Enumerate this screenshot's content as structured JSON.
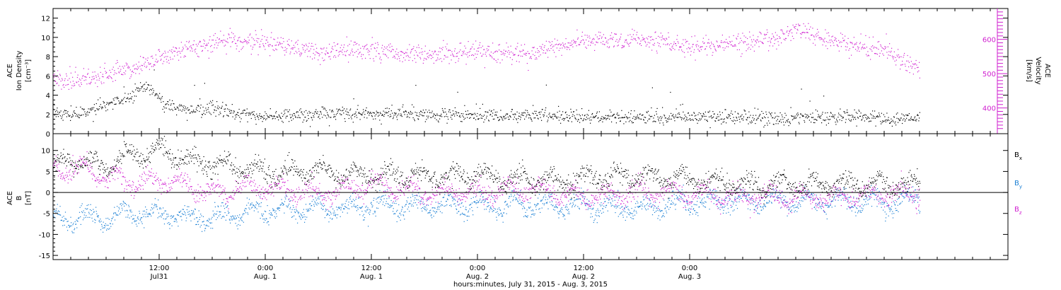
{
  "chart_data": [
    {
      "type": "scatter",
      "panel": "top",
      "ylabel_left": [
        "ACE",
        "Ion Density",
        "[cm⁻³]"
      ],
      "ylabel_right": [
        "ACE",
        "Velocity",
        "[km/s]"
      ],
      "ylim_left": [
        0,
        13
      ],
      "ylim_right": [
        325,
        690
      ],
      "yticks_left": [
        "0",
        "2",
        "4",
        "6",
        "8",
        "10",
        "12"
      ],
      "yticks_right": [
        "400",
        "500",
        "600"
      ],
      "right_axis_color": "#d020d0",
      "series": [
        {
          "axis": "left",
          "color": "#000000",
          "values_hours": [
            0,
            3,
            6,
            9,
            10,
            11,
            12,
            13,
            14,
            16,
            18,
            20,
            22,
            24,
            30,
            36,
            42,
            48,
            54,
            60,
            66,
            72,
            78,
            84,
            90,
            96,
            98
          ],
          "values": [
            2.2,
            2.0,
            3.0,
            4.0,
            5.0,
            4.5,
            3.8,
            3.0,
            2.6,
            2.4,
            2.8,
            2.2,
            1.9,
            1.8,
            2.0,
            2.2,
            2.0,
            2.0,
            1.9,
            1.8,
            1.7,
            1.8,
            1.7,
            1.6,
            1.8,
            1.6,
            1.6
          ]
        },
        {
          "axis": "right",
          "color": "#d020d0",
          "values_hours": [
            0,
            3,
            6,
            9,
            11,
            12,
            14,
            16,
            18,
            20,
            22,
            24,
            30,
            36,
            42,
            48,
            54,
            60,
            66,
            72,
            78,
            82,
            84,
            86,
            90,
            94,
            96,
            98
          ],
          "values": [
            480,
            485,
            495,
            520,
            530,
            550,
            565,
            575,
            590,
            600,
            595,
            590,
            565,
            570,
            555,
            565,
            560,
            595,
            600,
            580,
            590,
            600,
            630,
            610,
            585,
            570,
            535,
            525
          ]
        }
      ]
    },
    {
      "type": "scatter",
      "panel": "bottom",
      "ylabel_left": [
        "ACE",
        "B",
        "[nT]"
      ],
      "ylim": [
        -16,
        14
      ],
      "yticks": [
        "-15",
        "-10",
        "-5",
        "0",
        "5",
        "10"
      ],
      "zero_line": true,
      "series": [
        {
          "name": "Bx",
          "legend_main": "B",
          "legend_sub": "x",
          "color": "#000000",
          "values_hours": [
            0,
            3,
            6,
            9,
            12,
            15,
            18,
            21,
            24,
            30,
            36,
            42,
            48,
            54,
            60,
            66,
            72,
            78,
            84,
            90,
            96,
            98
          ],
          "values": [
            6,
            8,
            6,
            9,
            10,
            8,
            7,
            6,
            5,
            5,
            4,
            4,
            4,
            3,
            3,
            4,
            3,
            2,
            2,
            2,
            2,
            2
          ]
        },
        {
          "name": "By",
          "legend_main": "B",
          "legend_sub": "y",
          "color": "#1a7fd4",
          "values_hours": [
            0,
            3,
            6,
            9,
            12,
            15,
            18,
            21,
            24,
            30,
            36,
            42,
            48,
            54,
            60,
            66,
            72,
            78,
            84,
            90,
            96,
            98
          ],
          "values": [
            -7,
            -6,
            -6,
            -5,
            -5,
            -6,
            -6,
            -5,
            -4,
            -4,
            -3,
            -3,
            -3,
            -3,
            -3,
            -4,
            -2,
            -2,
            -2,
            -2,
            -2,
            -1
          ]
        },
        {
          "name": "Bz",
          "legend_main": "B",
          "legend_sub": "z",
          "color": "#d020d0",
          "values_hours": [
            0,
            3,
            6,
            9,
            12,
            15,
            18,
            21,
            24,
            30,
            36,
            42,
            48,
            54,
            60,
            66,
            72,
            78,
            84,
            90,
            96,
            98
          ],
          "values": [
            5,
            6,
            4,
            2,
            3,
            2,
            0,
            1,
            1,
            0,
            2,
            0,
            0,
            1,
            -1,
            0,
            0,
            -1,
            -1,
            -1,
            0,
            0
          ]
        }
      ]
    }
  ],
  "time_axis": {
    "xlim_hours": [
      0,
      108
    ],
    "ticks": [
      {
        "hours": 12,
        "line1": "12:00",
        "line2": "Jul31"
      },
      {
        "hours": 24,
        "line1": "0:00",
        "line2": "Aug. 1"
      },
      {
        "hours": 36,
        "line1": "12:00",
        "line2": "Aug. 1"
      },
      {
        "hours": 48,
        "line1": "0:00",
        "line2": "Aug. 2"
      },
      {
        "hours": 60,
        "line1": "12:00",
        "line2": "Aug. 2"
      },
      {
        "hours": 72,
        "line1": "0:00",
        "line2": "Aug. 3"
      }
    ],
    "label": "hours:minutes, July 31, 2015 - Aug.  3, 2015"
  }
}
